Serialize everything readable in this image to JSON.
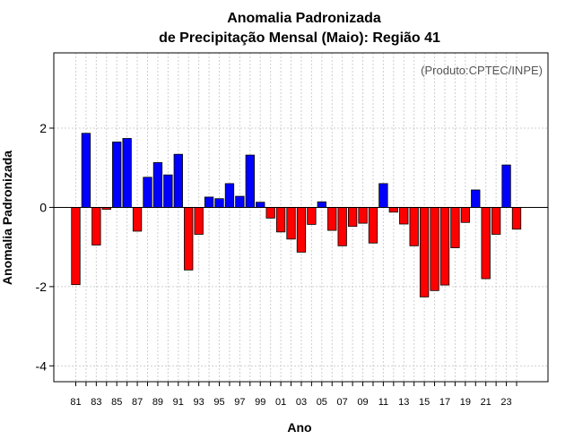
{
  "chart_data": {
    "type": "bar",
    "title": [
      "Anomalia Padronizada",
      "de Precipitação Mensal (Maio): Região 41"
    ],
    "xlabel": "Ano",
    "ylabel": "Anomalia Padronizada",
    "annotation": "(Produto:CPTEC/INPE)",
    "ylim": [
      -4.4,
      3.9
    ],
    "yticks": [
      -4,
      -2,
      0,
      2
    ],
    "ytick_labels": [
      "-4",
      "-2",
      "0",
      "2"
    ],
    "grid": true,
    "positive_color": "#0000ff",
    "negative_color": "#ff0000",
    "categories": [
      "81",
      "82",
      "83",
      "84",
      "85",
      "86",
      "87",
      "88",
      "89",
      "90",
      "91",
      "92",
      "93",
      "94",
      "95",
      "96",
      "97",
      "98",
      "99",
      "00",
      "01",
      "02",
      "03",
      "04",
      "05",
      "06",
      "07",
      "08",
      "09",
      "10",
      "11",
      "12",
      "13",
      "14",
      "15",
      "16",
      "17",
      "18",
      "19",
      "20",
      "21",
      "22",
      "23",
      "24"
    ],
    "values": [
      -1.95,
      1.87,
      -0.95,
      -0.05,
      1.65,
      1.74,
      -0.6,
      0.76,
      1.13,
      0.82,
      1.34,
      -1.58,
      -0.68,
      0.26,
      0.22,
      0.6,
      0.28,
      1.32,
      0.13,
      -0.27,
      -0.62,
      -0.8,
      -1.13,
      -0.43,
      0.14,
      -0.58,
      -0.97,
      -0.48,
      -0.4,
      -0.9,
      0.6,
      -0.12,
      -0.42,
      -0.97,
      -2.26,
      -2.1,
      -1.96,
      -1.02,
      -0.38,
      0.44,
      -1.8,
      -0.68,
      1.07,
      -0.55
    ],
    "tick_labels": [
      "81",
      "83",
      "85",
      "87",
      "89",
      "91",
      "93",
      "95",
      "97",
      "99",
      "01",
      "03",
      "05",
      "07",
      "09",
      "11",
      "13",
      "15",
      "17",
      "19",
      "21",
      "23"
    ]
  }
}
